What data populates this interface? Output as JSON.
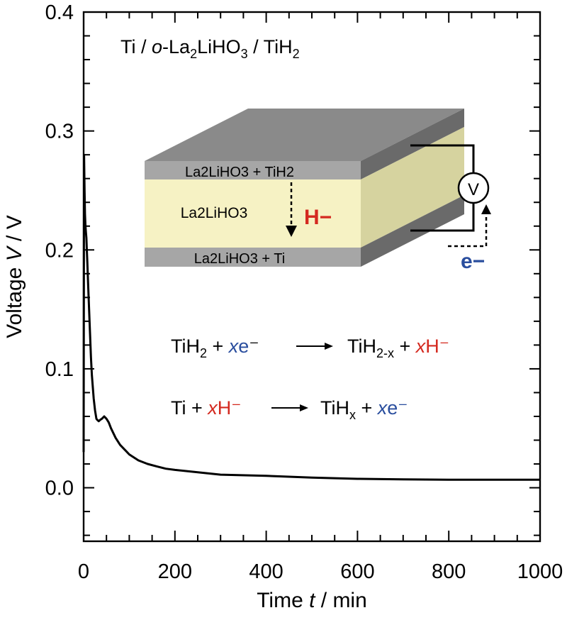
{
  "colors": {
    "ink": "#000000",
    "h_ion_red": "#d42a20",
    "electron_blue": "#2a4e9e",
    "electrolyte_yellow_front": "#f6f2c4",
    "electrolyte_yellow_side": "#d6d39f",
    "electrode_gray_front": "#a6a6a6",
    "electrode_gray_side": "#6a6a6a",
    "top_face_gray": "#8a8a8a"
  },
  "chart_data": {
    "type": "line",
    "xlabel": "Time t / min",
    "ylabel": "Voltage V / V",
    "xlim": [
      0,
      1000
    ],
    "ylim": [
      -0.045,
      0.4
    ],
    "xticks": [
      "0",
      "200",
      "400",
      "600",
      "800",
      "1000"
    ],
    "yticks": [
      "0.0",
      "0.1",
      "0.2",
      "0.3",
      "0.4"
    ],
    "grid": false,
    "series": [
      {
        "x": [
          0,
          1,
          2,
          3,
          4,
          5,
          6,
          7,
          8,
          9,
          10,
          12,
          14,
          16,
          18,
          20,
          22,
          25,
          28,
          30,
          33,
          36,
          40,
          45,
          50,
          55,
          60,
          70,
          80,
          90,
          100,
          120,
          140,
          160,
          180,
          200,
          250,
          300,
          400,
          500,
          600,
          700,
          800,
          900,
          1000
        ],
        "y": [
          0.03,
          0.28,
          0.25,
          0.23,
          0.22,
          0.215,
          0.21,
          0.2,
          0.19,
          0.18,
          0.17,
          0.15,
          0.13,
          0.11,
          0.095,
          0.085,
          0.075,
          0.065,
          0.058,
          0.057,
          0.056,
          0.057,
          0.058,
          0.06,
          0.058,
          0.055,
          0.05,
          0.042,
          0.036,
          0.032,
          0.028,
          0.023,
          0.02,
          0.018,
          0.016,
          0.015,
          0.013,
          0.011,
          0.01,
          0.0085,
          0.0075,
          0.007,
          0.0068,
          0.0068,
          0.0068
        ]
      }
    ]
  },
  "inset": {
    "cell_label": "Ti / o-La2LiHO3 / TiH2",
    "top_layer": "La2LiHO3 + TiH2",
    "middle_layer": "La2LiHO3",
    "bottom_layer": "La2LiHO3 + Ti",
    "ion": "H−",
    "voltmeter": "V",
    "electron": "e−"
  },
  "reactions": {
    "eq1": "TiH2 + xe− → TiH2-x + xH−",
    "eq2": "Ti + xH− → TiHx + xe−"
  }
}
